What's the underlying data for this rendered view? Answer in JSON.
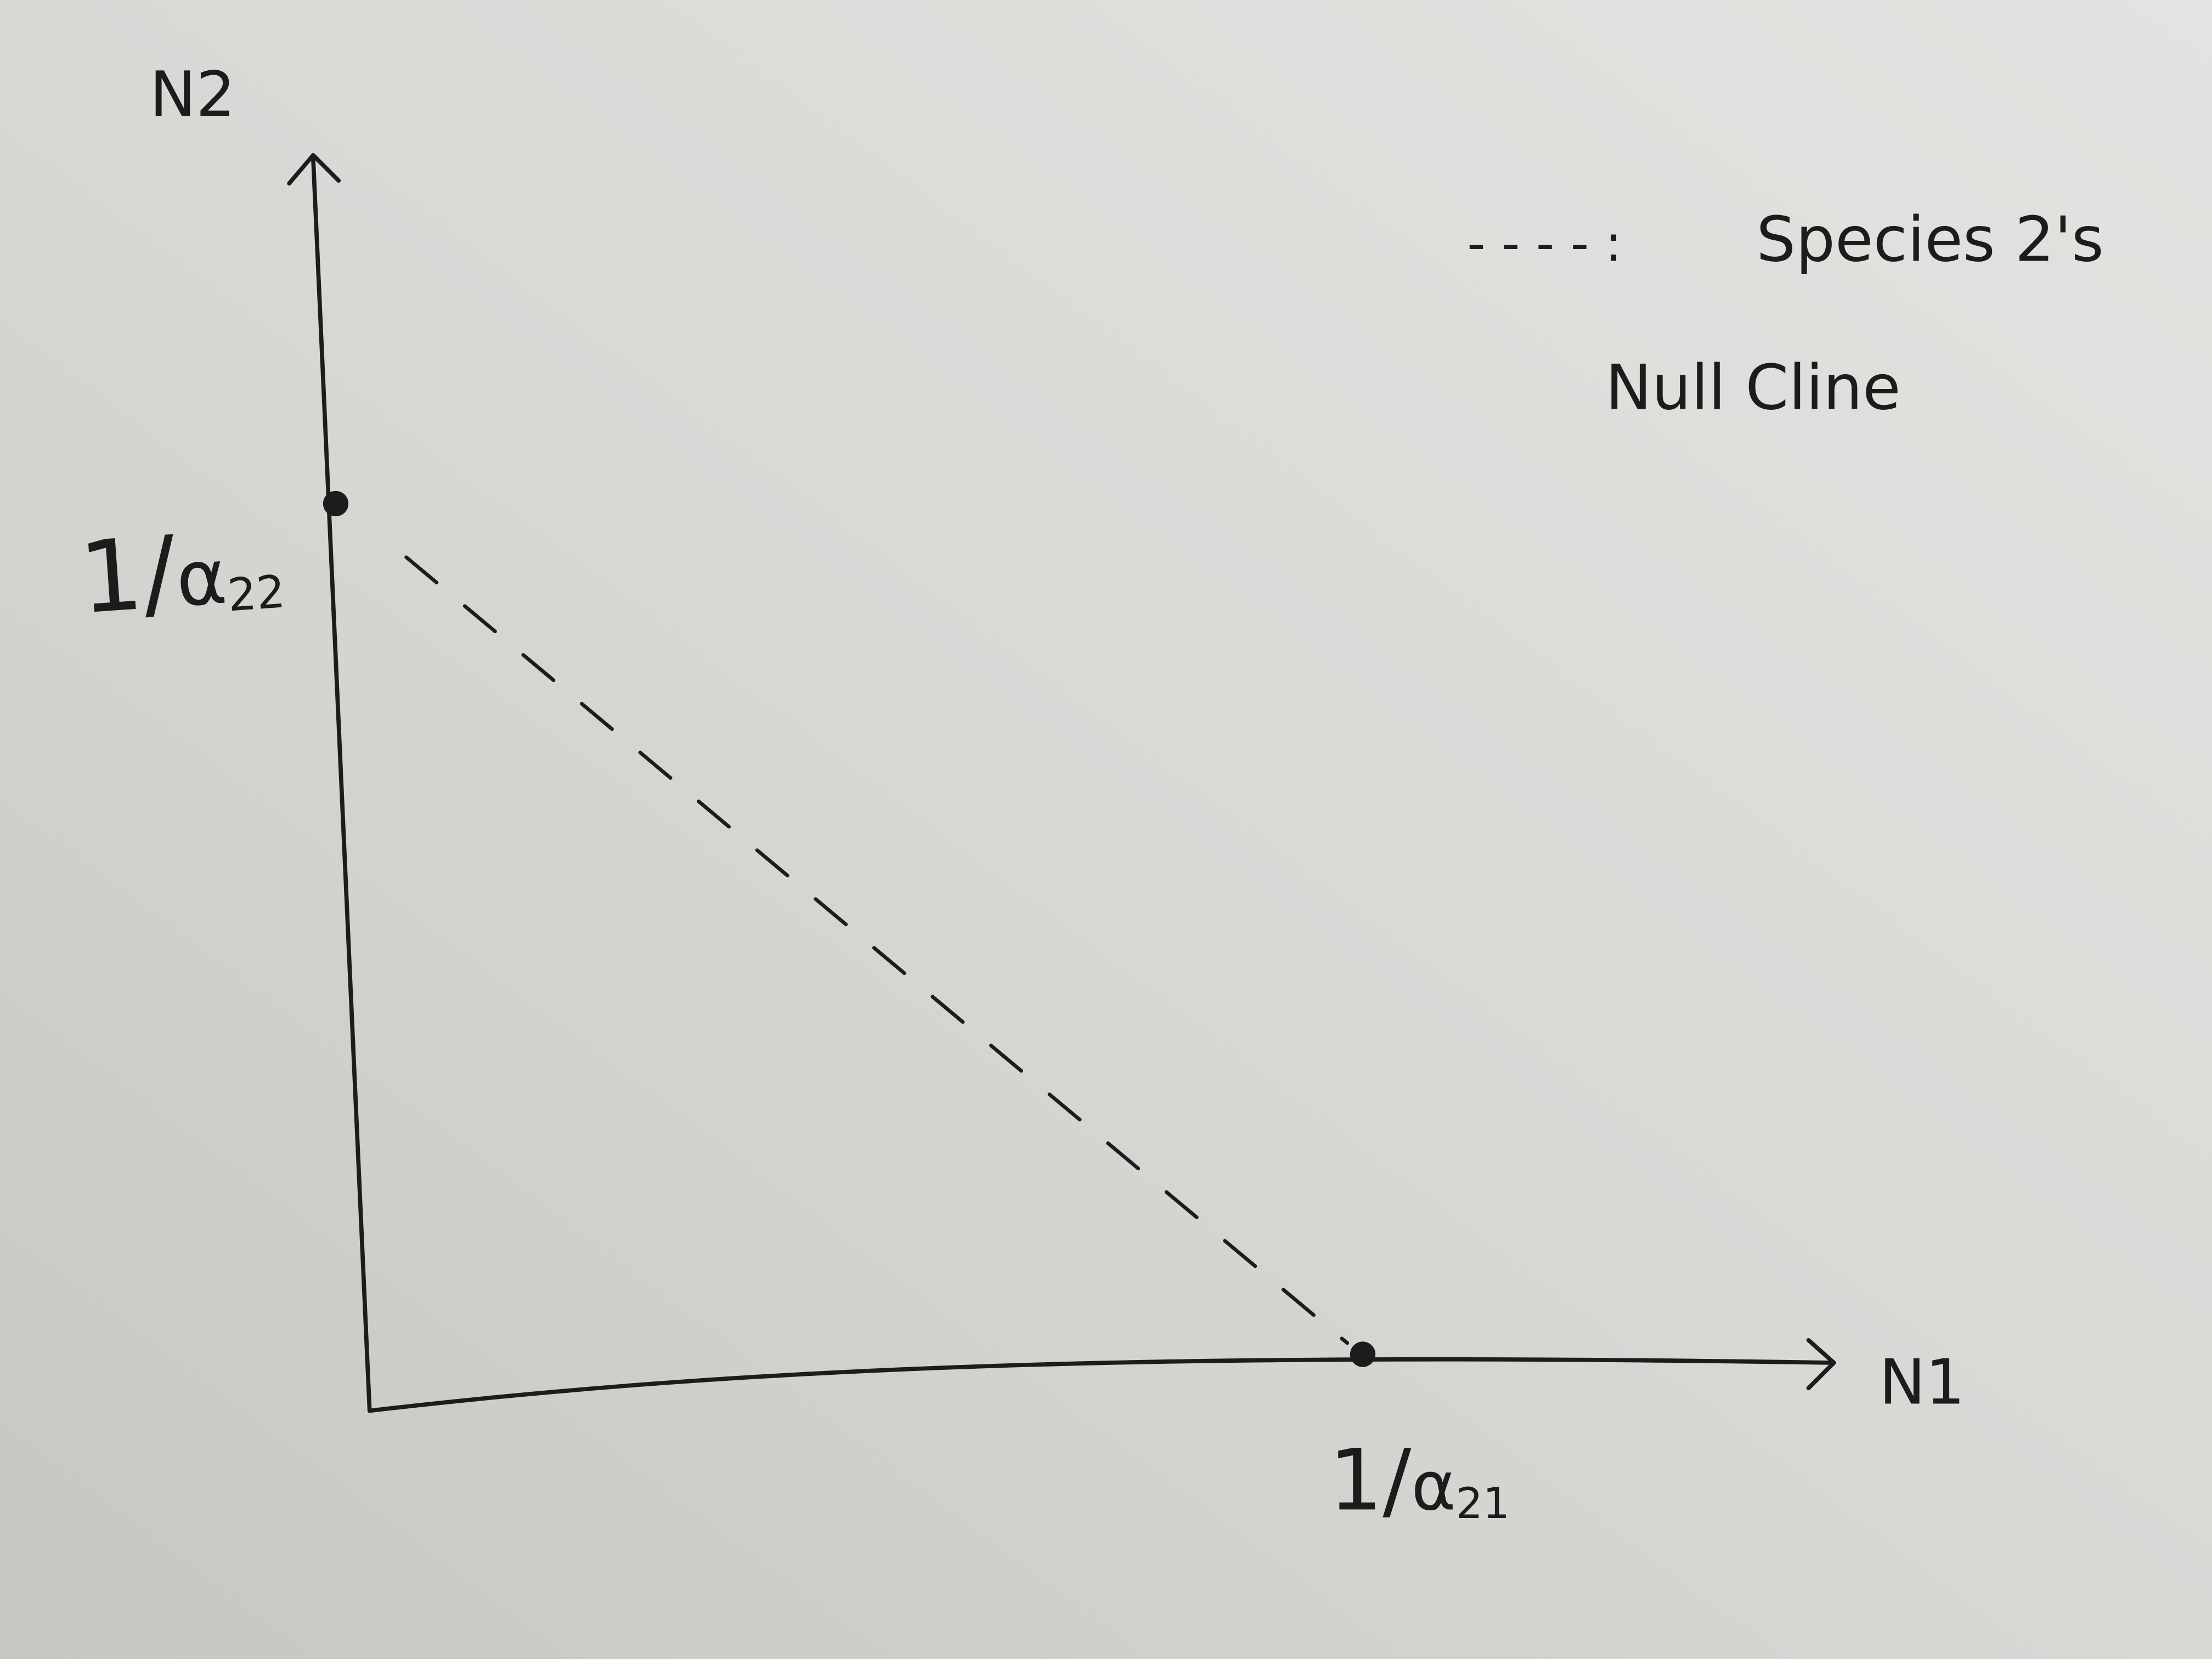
{
  "diagram": {
    "y_axis": {
      "label": "N2"
    },
    "x_axis": {
      "label": "N1"
    },
    "y_intercept": {
      "numerator": "1/",
      "symbol": "α",
      "subscript": "22"
    },
    "x_intercept": {
      "numerator": "1/",
      "symbol": "α",
      "subscript": "21"
    },
    "legend": {
      "marker": "- - - - :",
      "line1": "Species 2's",
      "line2": "Null Cline"
    },
    "nullcline_style": "dashed",
    "ink_color": "#1c1c1c",
    "paper_color": "#d9d9d6"
  }
}
